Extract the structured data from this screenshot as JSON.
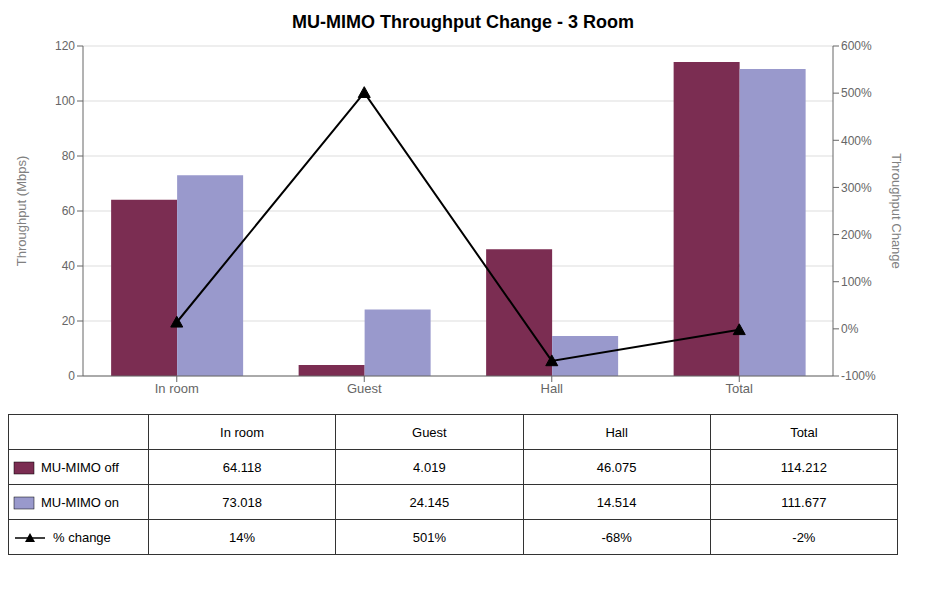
{
  "chart_data": {
    "type": "bar",
    "title": "MU-MIMO Throughput Change - 3 Room",
    "categories": [
      "In room",
      "Guest",
      "Hall",
      "Total"
    ],
    "series": [
      {
        "name": "MU-MIMO off",
        "color": "#7B2D52",
        "values": [
          64.118,
          4.019,
          46.075,
          114.212
        ]
      },
      {
        "name": "MU-MIMO on",
        "color": "#9999CC",
        "values": [
          73.018,
          24.145,
          14.514,
          111.677
        ]
      },
      {
        "name": "% change",
        "type": "line",
        "axis": "y2",
        "color": "#000000",
        "marker": "triangle",
        "values": [
          0.14,
          5.01,
          -0.68,
          -0.02
        ],
        "value_labels": [
          "14%",
          "501%",
          "-68%",
          "-2%"
        ]
      }
    ],
    "ylabel": "Throughput (Mbps)",
    "y2label": "Throughput Change",
    "ylim": [
      0,
      120
    ],
    "yticks": [
      0,
      20,
      40,
      60,
      80,
      100,
      120
    ],
    "y2lim": [
      -1.0,
      6.0
    ],
    "y2ticks": [
      {
        "value": -1.0,
        "label": "-100%"
      },
      {
        "value": 0.0,
        "label": "0%"
      },
      {
        "value": 1.0,
        "label": "100%"
      },
      {
        "value": 2.0,
        "label": "200%"
      },
      {
        "value": 3.0,
        "label": "300%"
      },
      {
        "value": 4.0,
        "label": "400%"
      },
      {
        "value": 5.0,
        "label": "500%"
      },
      {
        "value": 6.0,
        "label": "600%"
      }
    ],
    "grid": true
  }
}
